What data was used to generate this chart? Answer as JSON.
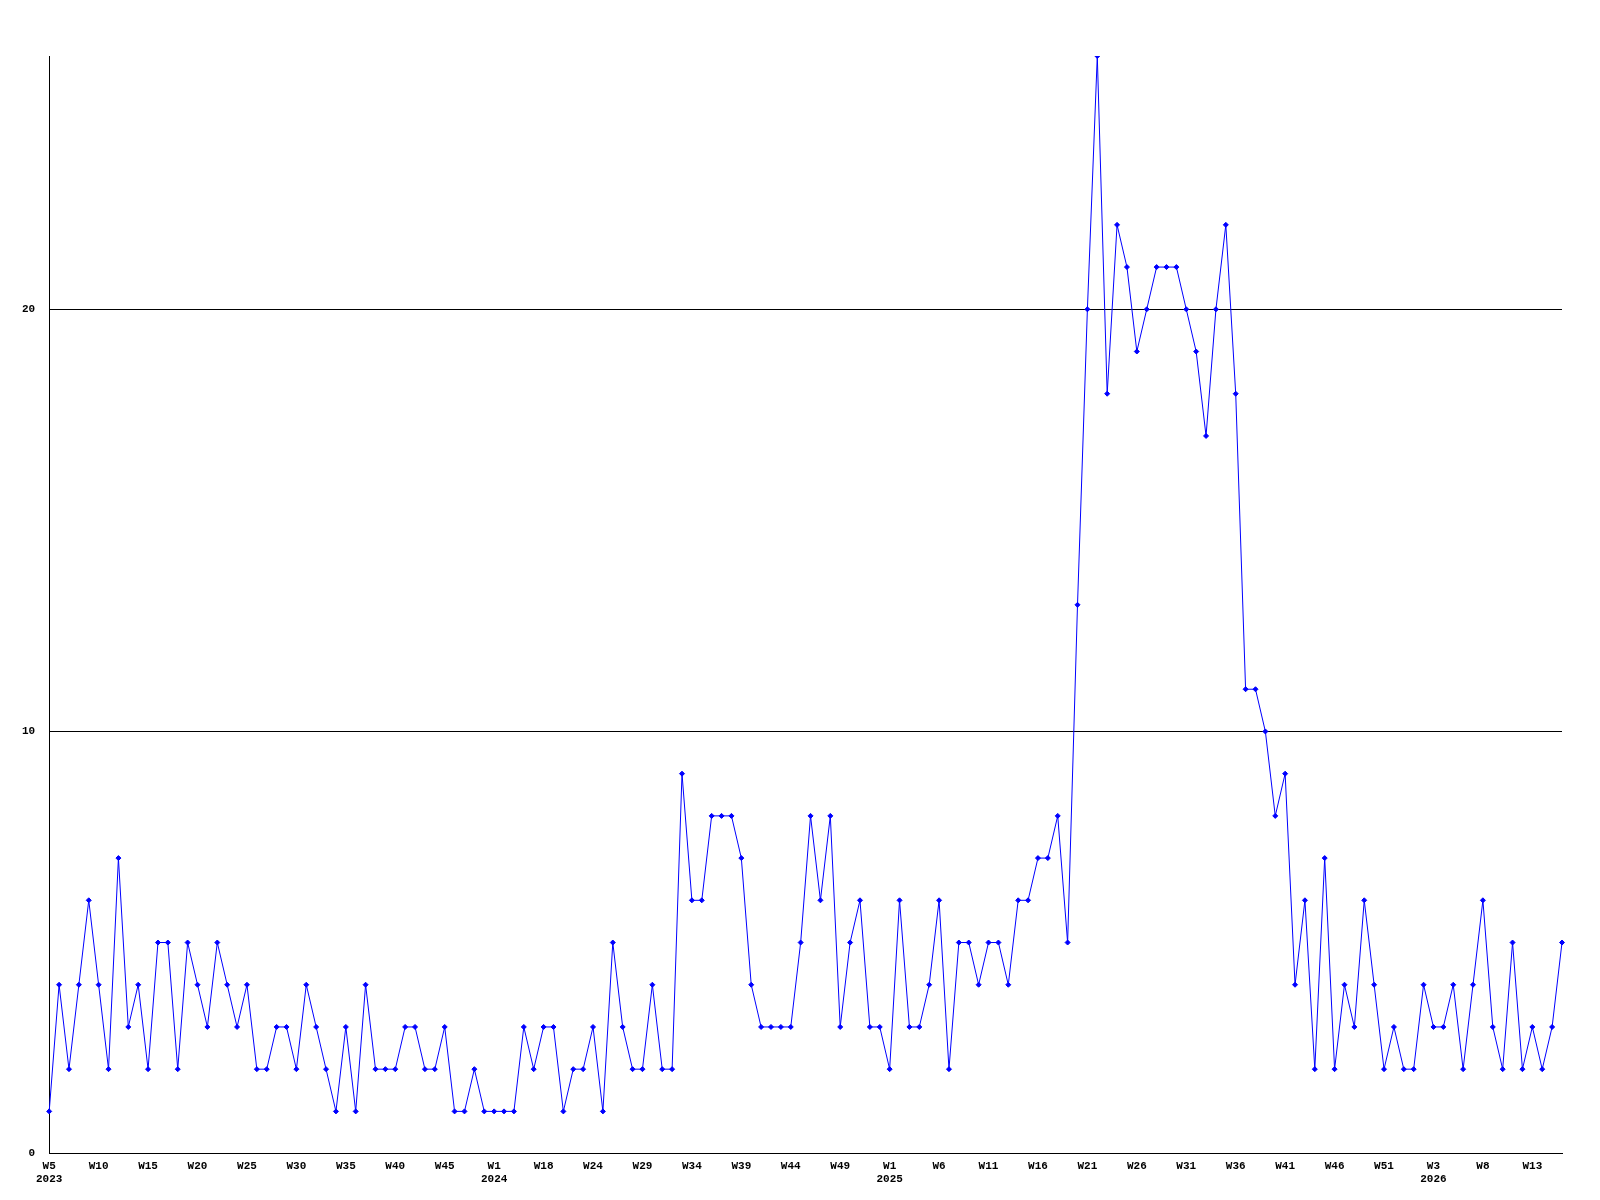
{
  "chart_data": {
    "type": "line",
    "categories": [
      "W5\n2023",
      null,
      null,
      null,
      null,
      "W10",
      null,
      null,
      null,
      null,
      "W15",
      null,
      null,
      null,
      null,
      "W20",
      null,
      null,
      null,
      null,
      "W25",
      null,
      null,
      null,
      null,
      "W30",
      null,
      null,
      null,
      null,
      "W35",
      null,
      null,
      null,
      null,
      "W40",
      null,
      null,
      null,
      null,
      "W45",
      null,
      null,
      null,
      null,
      "W1\n2024",
      null,
      null,
      null,
      null,
      "W18",
      null,
      null,
      null,
      null,
      "W24",
      null,
      null,
      null,
      null,
      "W29",
      null,
      null,
      null,
      null,
      "W34",
      null,
      null,
      null,
      null,
      "W39",
      null,
      null,
      null,
      null,
      "W44",
      null,
      null,
      null,
      null,
      "W49",
      null,
      null,
      null,
      null,
      "W1\n2025",
      null,
      null,
      null,
      null,
      "W6",
      null,
      null,
      null,
      null,
      "W11",
      null,
      null,
      null,
      null,
      "W16",
      null,
      null,
      null,
      null,
      "W21",
      null,
      null,
      null,
      null,
      "W26",
      null,
      null,
      null,
      null,
      "W31",
      null,
      null,
      null,
      null,
      "W36",
      null,
      null,
      null,
      null,
      "W41",
      null,
      null,
      null,
      null,
      "W46",
      null,
      null,
      null,
      null,
      "W51",
      null,
      null,
      null,
      null,
      "W3\n2026",
      null,
      null,
      null,
      null,
      "W8",
      null,
      null,
      null,
      null,
      "W13",
      null,
      null,
      null
    ],
    "series": [
      {
        "color": "#0000ff",
        "values": [
          1,
          4,
          2,
          4,
          6,
          4,
          2,
          7,
          3,
          4,
          2,
          5,
          5,
          2,
          5,
          4,
          3,
          5,
          4,
          3,
          4,
          2,
          2,
          3,
          3,
          2,
          4,
          3,
          2,
          1,
          3,
          1,
          4,
          2,
          2,
          2,
          3,
          3,
          2,
          2,
          3,
          1,
          1,
          2,
          1,
          1,
          1,
          1,
          3,
          2,
          3,
          3,
          1,
          2,
          2,
          3,
          1,
          5,
          3,
          2,
          2,
          4,
          2,
          2,
          9,
          6,
          6,
          8,
          8,
          8,
          7,
          4,
          3,
          3,
          3,
          3,
          5,
          8,
          6,
          8,
          3,
          5,
          6,
          3,
          3,
          2,
          6,
          3,
          3,
          4,
          6,
          2,
          5,
          5,
          4,
          5,
          5,
          4,
          6,
          6,
          7,
          7,
          8,
          5,
          13,
          20,
          26,
          18,
          22,
          21,
          19,
          20,
          21,
          21,
          21,
          20,
          19,
          17,
          20,
          22,
          18,
          11,
          11,
          10,
          8,
          9,
          4,
          6,
          2,
          7,
          2,
          4,
          3,
          6,
          4,
          2,
          3,
          2,
          2,
          4,
          3,
          3,
          4,
          2,
          4,
          6,
          3,
          2,
          5,
          2,
          3,
          2,
          3,
          5
        ]
      }
    ],
    "ylim": [
      0,
      26
    ],
    "yticks": [
      0,
      10,
      20
    ],
    "grid": "y",
    "legend": false,
    "marker": "diamond",
    "line_style": "solid"
  }
}
